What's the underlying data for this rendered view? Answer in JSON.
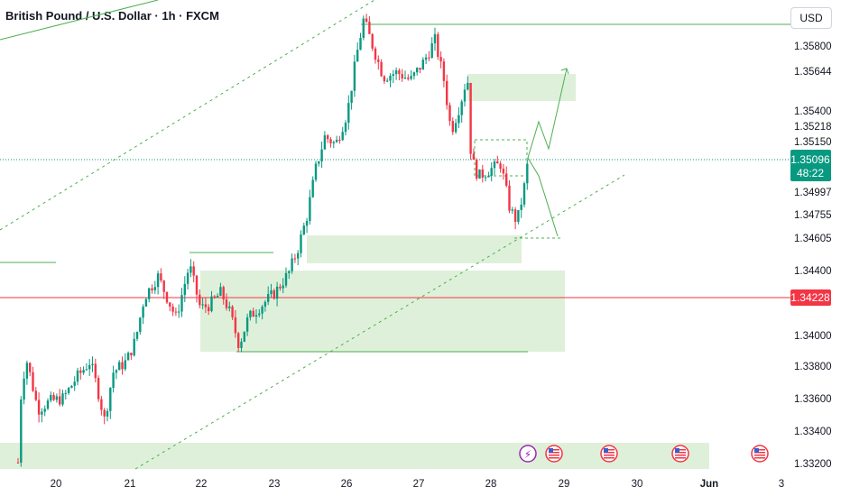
{
  "header": {
    "title": "British Pound / U.S. Dollar · 1h · FXCM",
    "currency": "USD"
  },
  "colors": {
    "up": "#089981",
    "down": "#f23645",
    "zone": "#dff0da",
    "zone_line": "#4caf50",
    "current_price_tag": "#089981",
    "red_line": "#f23645",
    "event_red": "#f23645",
    "event_purple": "#9c27b0"
  },
  "chart_data": {
    "type": "candlestick",
    "ylim": [
      1.3318,
      1.361
    ],
    "price_ticks": [
      "1.35800",
      "1.35644",
      "1.35400",
      "1.35218",
      "1.35150",
      "1.34997",
      "1.34755",
      "1.34605",
      "1.34400",
      "1.34000",
      "1.33800",
      "1.33600",
      "1.33400",
      "1.33200"
    ],
    "date_ticks": [
      "20",
      "21",
      "22",
      "23",
      "26",
      "27",
      "28",
      "29",
      "30",
      "Jun",
      "3"
    ],
    "current_price": {
      "value": "1.35096",
      "countdown": "48:22"
    },
    "red_level": {
      "value": "1.34228"
    },
    "price_path": [
      [
        20,
        1.3322
      ],
      [
        24,
        1.3372
      ],
      [
        30,
        1.3385
      ],
      [
        42,
        1.3355
      ],
      [
        55,
        1.336
      ],
      [
        70,
        1.3362
      ],
      [
        85,
        1.3375
      ],
      [
        100,
        1.3385
      ],
      [
        108,
        1.3368
      ],
      [
        116,
        1.3348
      ],
      [
        125,
        1.3378
      ],
      [
        140,
        1.3385
      ],
      [
        150,
        1.3398
      ],
      [
        160,
        1.3425
      ],
      [
        175,
        1.3438
      ],
      [
        185,
        1.3425
      ],
      [
        195,
        1.3412
      ],
      [
        210,
        1.3445
      ],
      [
        222,
        1.3418
      ],
      [
        232,
        1.342
      ],
      [
        245,
        1.3428
      ],
      [
        255,
        1.3415
      ],
      [
        265,
        1.3395
      ],
      [
        275,
        1.3412
      ],
      [
        290,
        1.342
      ],
      [
        305,
        1.3428
      ],
      [
        320,
        1.344
      ],
      [
        330,
        1.3455
      ],
      [
        340,
        1.3475
      ],
      [
        350,
        1.3505
      ],
      [
        360,
        1.3525
      ],
      [
        372,
        1.352
      ],
      [
        385,
        1.354
      ],
      [
        395,
        1.3575
      ],
      [
        403,
        1.3598
      ],
      [
        415,
        1.3578
      ],
      [
        425,
        1.3562
      ],
      [
        440,
        1.3565
      ],
      [
        455,
        1.356
      ],
      [
        470,
        1.3572
      ],
      [
        482,
        1.3585
      ],
      [
        492,
        1.356
      ],
      [
        500,
        1.3528
      ],
      [
        510,
        1.3545
      ],
      [
        518,
        1.3563
      ],
      [
        522,
        1.3512
      ],
      [
        530,
        1.35
      ],
      [
        545,
        1.3505
      ],
      [
        555,
        1.3508
      ],
      [
        565,
        1.348
      ],
      [
        573,
        1.3472
      ],
      [
        580,
        1.349
      ],
      [
        585,
        1.3509
      ]
    ]
  },
  "events": [
    {
      "type": "flash",
      "label": "⚡"
    },
    {
      "type": "flag",
      "label": "US"
    },
    {
      "type": "flag",
      "label": "US"
    },
    {
      "type": "flag",
      "label": "US"
    },
    {
      "type": "flag",
      "label": "US"
    }
  ]
}
